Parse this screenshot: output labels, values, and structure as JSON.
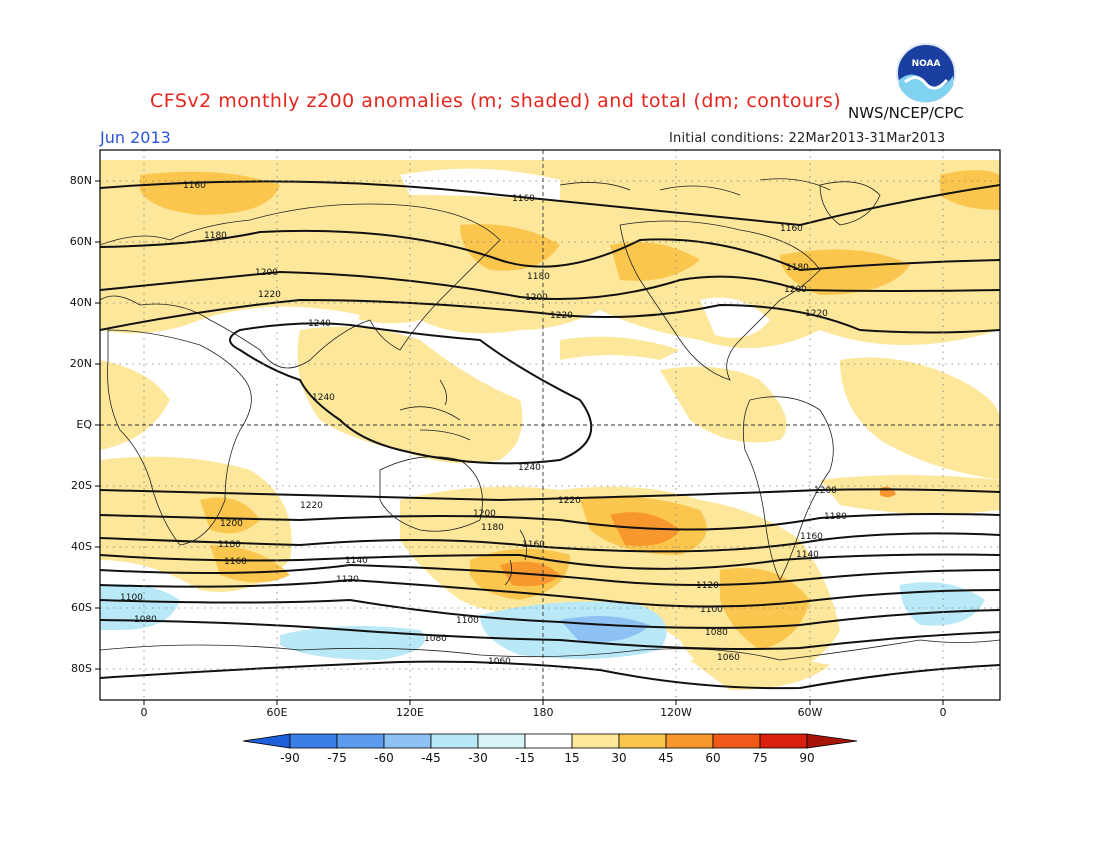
{
  "title": "CFSv2 monthly z200 anomalies (m; shaded) and total (dm; contours)",
  "agency": "NWS/NCEP/CPC",
  "logo_text": "NOAA",
  "valid_month": "Jun 2013",
  "initial_conditions": "Initial conditions: 22Mar2013-31Mar2013",
  "lat_labels": [
    "80N",
    "60N",
    "40N",
    "20N",
    "EQ",
    "20S",
    "40S",
    "60S",
    "80S"
  ],
  "lon_labels": [
    "0",
    "60E",
    "120E",
    "180",
    "120W",
    "60W",
    "0"
  ],
  "colorbar": {
    "labels": [
      "-90",
      "-75",
      "-60",
      "-45",
      "-30",
      "-15",
      "15",
      "30",
      "45",
      "60",
      "75",
      "90"
    ],
    "colors": [
      "#1e5fd8",
      "#3a7ee6",
      "#5c9cef",
      "#8ec2f5",
      "#b9e9f6",
      "#ffffff",
      "#fde79a",
      "#fbc64e",
      "#f7972e",
      "#ef5a1b",
      "#d9200e"
    ]
  },
  "contour_labels": [
    "1160",
    "1160",
    "1160",
    "1180",
    "1180",
    "1180",
    "1200",
    "1200",
    "1200",
    "1220",
    "1220",
    "1220",
    "1240",
    "1240",
    "1240",
    "1220",
    "1220",
    "1200",
    "1200",
    "1200",
    "1180",
    "1180",
    "1180",
    "1160",
    "1160",
    "1160",
    "1140",
    "1140",
    "1120",
    "1120",
    "1100",
    "1100",
    "1100",
    "1080",
    "1080",
    "1080",
    "1060",
    "1060"
  ],
  "colors": {
    "title": "#e8251c",
    "month": "#2a55d8"
  }
}
